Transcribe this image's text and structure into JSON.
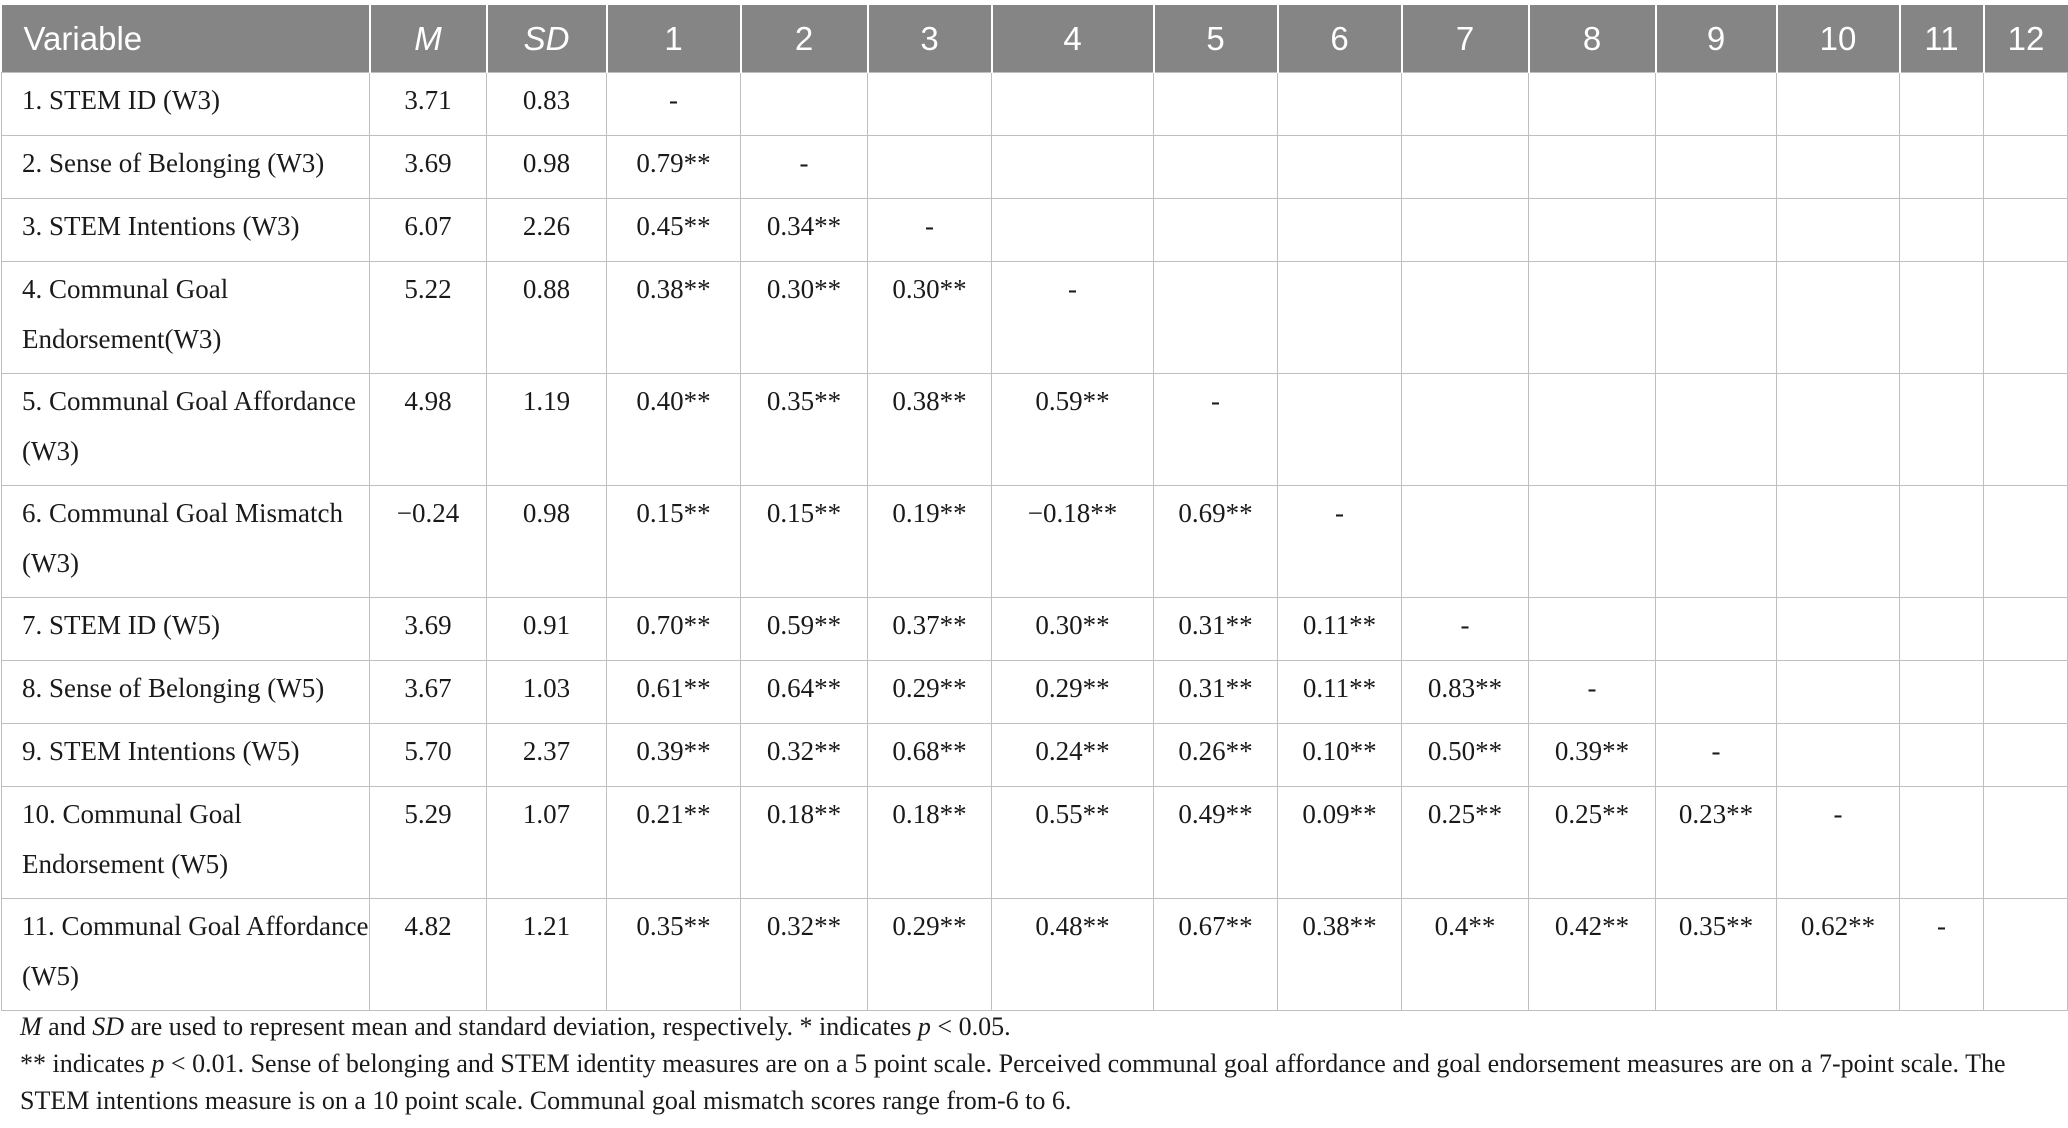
{
  "table": {
    "headers": [
      "Variable",
      "M",
      "SD",
      "1",
      "2",
      "3",
      "4",
      "5",
      "6",
      "7",
      "8",
      "9",
      "10",
      "11",
      "12"
    ],
    "rows": [
      [
        "1. STEM ID (W3)",
        "3.71",
        "0.83",
        "-",
        "",
        "",
        "",
        "",
        "",
        "",
        "",
        "",
        "",
        "",
        ""
      ],
      [
        "2. Sense of Belonging (W3)",
        "3.69",
        "0.98",
        "0.79**",
        "-",
        "",
        "",
        "",
        "",
        "",
        "",
        "",
        "",
        "",
        ""
      ],
      [
        "3. STEM Intentions (W3)",
        "6.07",
        "2.26",
        "0.45**",
        "0.34**",
        "-",
        "",
        "",
        "",
        "",
        "",
        "",
        "",
        "",
        ""
      ],
      [
        "4. Communal Goal Endorsement(W3)",
        "5.22",
        "0.88",
        "0.38**",
        "0.30**",
        "0.30**",
        "-",
        "",
        "",
        "",
        "",
        "",
        "",
        "",
        ""
      ],
      [
        "5. Communal Goal Affordance (W3)",
        "4.98",
        "1.19",
        "0.40**",
        "0.35**",
        "0.38**",
        "0.59**",
        "-",
        "",
        "",
        "",
        "",
        "",
        "",
        ""
      ],
      [
        "6. Communal Goal Mismatch (W3)",
        "−0.24",
        "0.98",
        "0.15**",
        "0.15**",
        "0.19**",
        "−0.18**",
        "0.69**",
        "-",
        "",
        "",
        "",
        "",
        "",
        ""
      ],
      [
        "7. STEM ID (W5)",
        "3.69",
        "0.91",
        "0.70**",
        "0.59**",
        "0.37**",
        "0.30**",
        "0.31**",
        "0.11**",
        "-",
        "",
        "",
        "",
        "",
        ""
      ],
      [
        "8. Sense of Belonging (W5)",
        "3.67",
        "1.03",
        "0.61**",
        "0.64**",
        "0.29**",
        "0.29**",
        "0.31**",
        "0.11**",
        "0.83**",
        "-",
        "",
        "",
        "",
        ""
      ],
      [
        "9. STEM Intentions (W5)",
        "5.70",
        "2.37",
        "0.39**",
        "0.32**",
        "0.68**",
        "0.24**",
        "0.26**",
        "0.10**",
        "0.50**",
        "0.39**",
        "-",
        "",
        "",
        ""
      ],
      [
        "10. Communal Goal Endorsement (W5)",
        "5.29",
        "1.07",
        "0.21**",
        "0.18**",
        "0.18**",
        "0.55**",
        "0.49**",
        "0.09**",
        "0.25**",
        "0.25**",
        "0.23**",
        "-",
        "",
        ""
      ],
      [
        "11. Communal Goal Affordance (W5)",
        "4.82",
        "1.21",
        "0.35**",
        "0.32**",
        "0.29**",
        "0.48**",
        "0.67**",
        "0.38**",
        "0.4**",
        "0.42**",
        "0.35**",
        "0.62**",
        "-",
        ""
      ]
    ]
  },
  "notes": {
    "line1": {
      "m": "M",
      "and": " and ",
      "sd": "SD",
      "mid": " are used to represent mean and standard deviation, respectively. * indicates ",
      "p": "p",
      "end": " < 0.05."
    },
    "line2": {
      "start": "** indicates ",
      "p": "p",
      "rest": " < 0.01. Sense of belonging and STEM identity measures are on a 5 point scale. Perceived communal goal affordance and goal endorsement measures are on a 7-point scale. The STEM intentions measure is on a 10 point scale. Communal goal mismatch scores range from-6 to 6."
    }
  }
}
